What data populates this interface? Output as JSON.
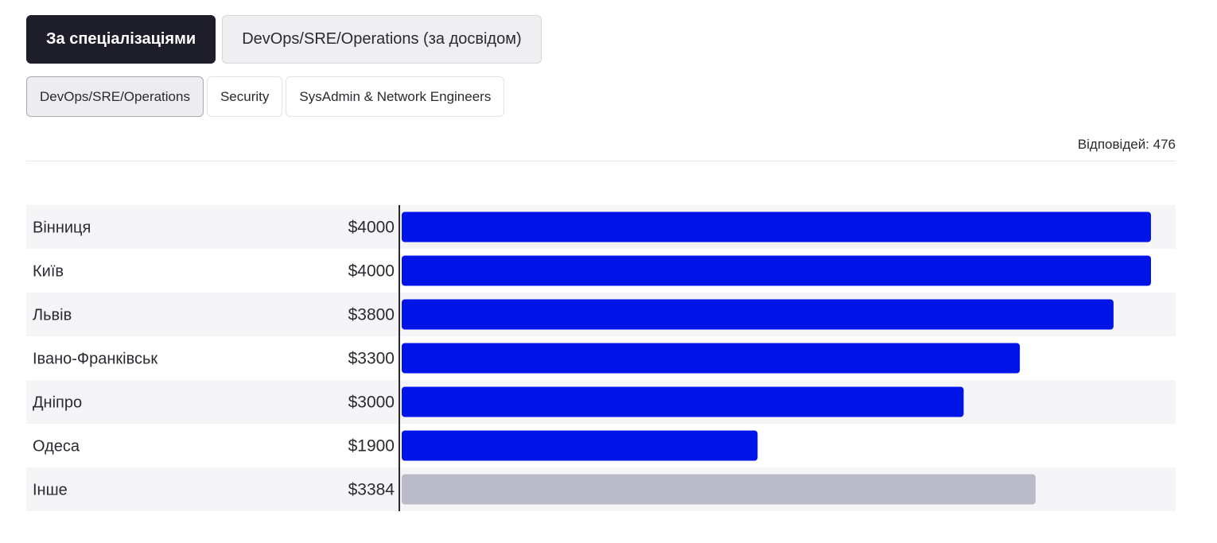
{
  "tabs_primary": [
    {
      "label": "За спеціалізаціями",
      "active": true
    },
    {
      "label": "DevOps/SRE/Operations (за досвідом)",
      "active": false
    }
  ],
  "tabs_secondary": [
    {
      "label": "DevOps/SRE/Operations",
      "active": true
    },
    {
      "label": "Security",
      "active": false
    },
    {
      "label": "SysAdmin & Network Engineers",
      "active": false
    }
  ],
  "responses_label": "Відповідей: 476",
  "colors": {
    "bar": "#0014e8",
    "bar_other": "#babbc8",
    "row_stripe": "#f5f5f7",
    "axis": "#2a2a30"
  },
  "chart_data": {
    "type": "bar",
    "orientation": "horizontal",
    "categories": [
      "Вінниця",
      "Київ",
      "Львів",
      "Івано-Франківськ",
      "Дніпро",
      "Одеса",
      "Інше"
    ],
    "values": [
      4000,
      4000,
      3800,
      3300,
      3000,
      1900,
      3384
    ],
    "value_labels": [
      "$4000",
      "$4000",
      "$3800",
      "$3300",
      "$3000",
      "$1900",
      "$3384"
    ],
    "highlight": [
      true,
      true,
      true,
      true,
      true,
      true,
      false
    ],
    "xlim": [
      0,
      4000
    ],
    "grid": false
  }
}
